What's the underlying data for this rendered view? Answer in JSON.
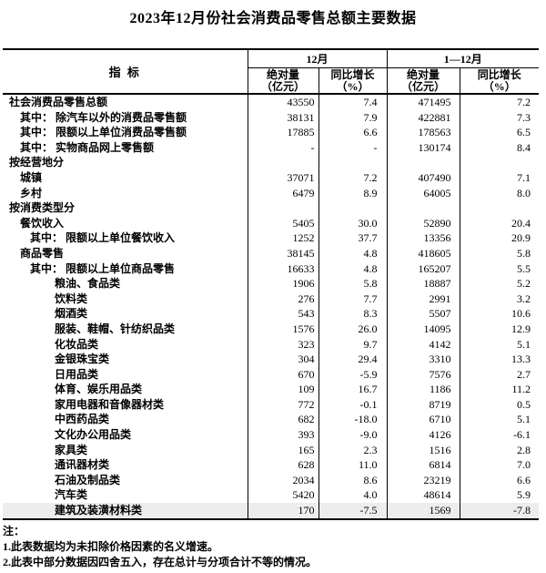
{
  "title": "2023年12月份社会消费品零售总额主要数据",
  "table": {
    "header": {
      "indicator": "指  标",
      "dec": "12月",
      "ytd": "1—12月",
      "abs_label": "绝对量",
      "abs_unit": "（亿元）",
      "yoy_label": "同比增长",
      "yoy_unit": "（%）"
    },
    "rows": [
      {
        "label": "社会消费品零售总额",
        "indent": 0,
        "values": [
          "43550",
          "7.4",
          "471495",
          "7.2"
        ]
      },
      {
        "label": "其中： 除汽车以外的消费品零售额",
        "indent": 1,
        "values": [
          "38131",
          "7.9",
          "422881",
          "7.3"
        ]
      },
      {
        "label": "其中： 限额以上单位消费品零售额",
        "indent": 1,
        "values": [
          "17885",
          "6.6",
          "178563",
          "6.5"
        ]
      },
      {
        "label": "其中： 实物商品网上零售额",
        "indent": 1,
        "values": [
          "-",
          "-",
          "130174",
          "8.4"
        ]
      },
      {
        "label": "按经营地分",
        "indent": 0,
        "values": [
          "",
          "",
          "",
          ""
        ]
      },
      {
        "label": "城镇",
        "indent": 1,
        "values": [
          "37071",
          "7.2",
          "407490",
          "7.1"
        ]
      },
      {
        "label": "乡村",
        "indent": 1,
        "values": [
          "6479",
          "8.9",
          "64005",
          "8.0"
        ]
      },
      {
        "label": "按消费类型分",
        "indent": 0,
        "values": [
          "",
          "",
          "",
          ""
        ]
      },
      {
        "label": "餐饮收入",
        "indent": 1,
        "values": [
          "5405",
          "30.0",
          "52890",
          "20.4"
        ]
      },
      {
        "label": "其中： 限额以上单位餐饮收入",
        "indent": 2,
        "values": [
          "1252",
          "37.7",
          "13356",
          "20.9"
        ]
      },
      {
        "label": "商品零售",
        "indent": 1,
        "values": [
          "38145",
          "4.8",
          "418605",
          "5.8"
        ]
      },
      {
        "label": "其中： 限额以上单位商品零售",
        "indent": 2,
        "values": [
          "16633",
          "4.8",
          "165207",
          "5.5"
        ]
      },
      {
        "label": "粮油、食品类",
        "indent": 3,
        "values": [
          "1906",
          "5.8",
          "18887",
          "5.2"
        ]
      },
      {
        "label": "饮料类",
        "indent": 3,
        "values": [
          "276",
          "7.7",
          "2991",
          "3.2"
        ]
      },
      {
        "label": "烟酒类",
        "indent": 3,
        "values": [
          "543",
          "8.3",
          "5507",
          "10.6"
        ]
      },
      {
        "label": "服装、鞋帽、针纺织品类",
        "indent": 3,
        "values": [
          "1576",
          "26.0",
          "14095",
          "12.9"
        ]
      },
      {
        "label": "化妆品类",
        "indent": 3,
        "values": [
          "323",
          "9.7",
          "4142",
          "5.1"
        ]
      },
      {
        "label": "金银珠宝类",
        "indent": 3,
        "values": [
          "304",
          "29.4",
          "3310",
          "13.3"
        ]
      },
      {
        "label": "日用品类",
        "indent": 3,
        "values": [
          "670",
          "-5.9",
          "7576",
          "2.7"
        ]
      },
      {
        "label": "体育、娱乐用品类",
        "indent": 3,
        "values": [
          "109",
          "16.7",
          "1186",
          "11.2"
        ]
      },
      {
        "label": "家用电器和音像器材类",
        "indent": 3,
        "values": [
          "772",
          "-0.1",
          "8719",
          "0.5"
        ]
      },
      {
        "label": "中西药品类",
        "indent": 3,
        "values": [
          "682",
          "-18.0",
          "6710",
          "5.1"
        ]
      },
      {
        "label": "文化办公用品类",
        "indent": 3,
        "values": [
          "393",
          "-9.0",
          "4126",
          "-6.1"
        ]
      },
      {
        "label": "家具类",
        "indent": 3,
        "values": [
          "165",
          "2.3",
          "1516",
          "2.8"
        ]
      },
      {
        "label": "通讯器材类",
        "indent": 3,
        "values": [
          "628",
          "11.0",
          "6814",
          "7.0"
        ]
      },
      {
        "label": "石油及制品类",
        "indent": 3,
        "values": [
          "2034",
          "8.6",
          "23219",
          "6.6"
        ]
      },
      {
        "label": "汽车类",
        "indent": 3,
        "values": [
          "5420",
          "4.0",
          "48614",
          "5.9"
        ]
      },
      {
        "label": "建筑及装潢材料类",
        "indent": 3,
        "values": [
          "170",
          "-7.5",
          "1569",
          "-7.8"
        ]
      }
    ]
  },
  "notes": {
    "title": "注：",
    "items": [
      "1.此表数据均为未扣除价格因素的名义增速。",
      "2.此表中部分数据因四舍五入，存在总计与分项合计不等的情况。"
    ]
  }
}
